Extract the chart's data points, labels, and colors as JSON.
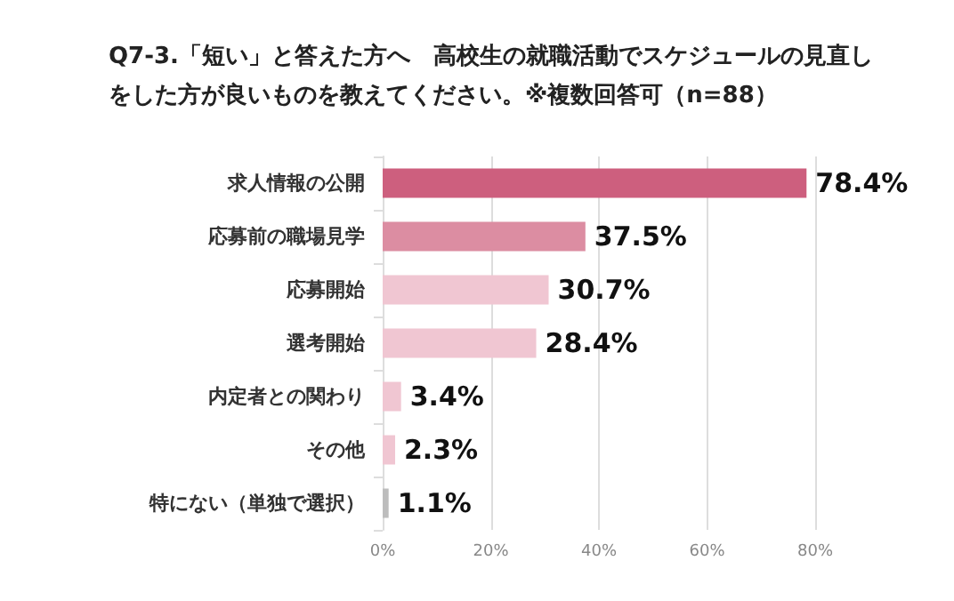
{
  "chart_data": {
    "type": "bar",
    "orientation": "horizontal",
    "title": "Q7-3.「短い」と答えた方へ　高校生の就職活動でスケジュールの見直しをした方が良いものを教えてください。※複数回答可（n=88）",
    "categories": [
      "求人情報の公開",
      "応募前の職場見学",
      "応募開始",
      "選考開始",
      "内定者との関わり",
      "その他",
      "特にない（単独で選択）"
    ],
    "values": [
      78.4,
      37.5,
      30.7,
      28.4,
      3.4,
      2.3,
      1.1
    ],
    "colors": [
      "#cd5f7e",
      "#dc8da2",
      "#f0c6d2",
      "#f0c6d2",
      "#f0c6d2",
      "#f0c6d2",
      "#bdbdbd"
    ],
    "value_labels": [
      "78.4%",
      "37.5%",
      "30.7%",
      "28.4%",
      "3.4%",
      "2.3%",
      "1.1%"
    ],
    "xlim": [
      0,
      80
    ],
    "xticks": [
      {
        "value": 0,
        "label": "0%"
      },
      {
        "value": 20,
        "label": "20%"
      },
      {
        "value": 40,
        "label": "40%"
      },
      {
        "value": 60,
        "label": "60%"
      },
      {
        "value": 80,
        "label": "80%"
      }
    ],
    "grid": "x"
  }
}
